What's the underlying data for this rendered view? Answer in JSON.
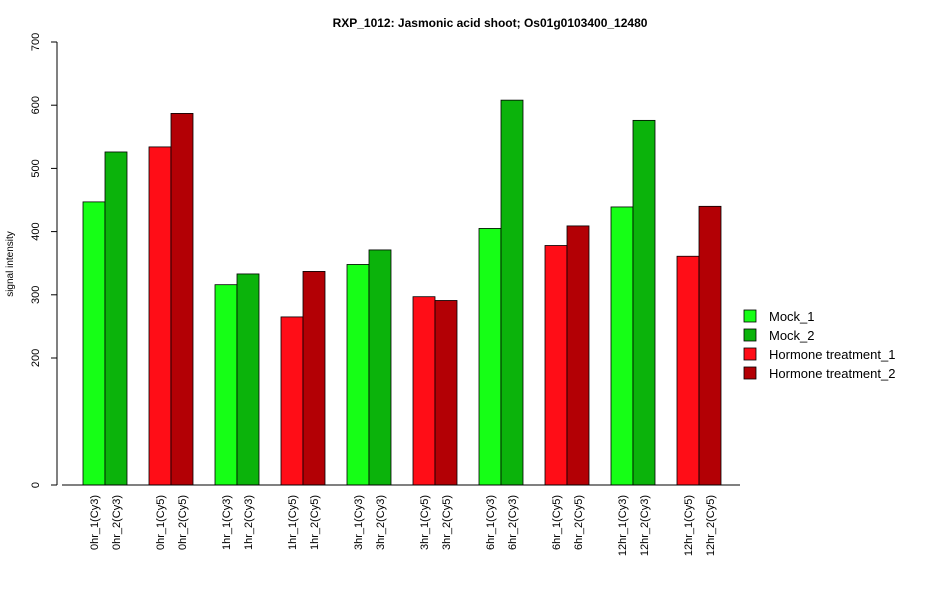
{
  "chart_data": {
    "type": "bar",
    "title": "RXP_1012: Jasmonic acid shoot; Os01g0103400_12480",
    "ylabel": "signal intensity",
    "xlabel": "",
    "yticks": [
      0,
      200,
      300,
      400,
      500,
      600,
      700
    ],
    "ylim": [
      0,
      700
    ],
    "grid": false,
    "legend_position": "right",
    "series": [
      {
        "name": "Mock_1",
        "color": "#16FF16"
      },
      {
        "name": "Mock_2",
        "color": "#0BB30B"
      },
      {
        "name": "Hormone treatment_1",
        "color": "#FF0D17"
      },
      {
        "name": "Hormone treatment_2",
        "color": "#B30005"
      }
    ],
    "bars": [
      {
        "label": "0hr_1(Cy3)",
        "value": 447,
        "series": 0
      },
      {
        "label": "0hr_2(Cy3)",
        "value": 526,
        "series": 1
      },
      {
        "label": "0hr_1(Cy5)",
        "value": 534,
        "series": 2
      },
      {
        "label": "0hr_2(Cy5)",
        "value": 587,
        "series": 3
      },
      {
        "label": "1hr_1(Cy3)",
        "value": 316,
        "series": 0
      },
      {
        "label": "1hr_2(Cy3)",
        "value": 333,
        "series": 1
      },
      {
        "label": "1hr_1(Cy5)",
        "value": 265,
        "series": 2
      },
      {
        "label": "1hr_2(Cy5)",
        "value": 337,
        "series": 3
      },
      {
        "label": "3hr_1(Cy3)",
        "value": 348,
        "series": 0
      },
      {
        "label": "3hr_2(Cy3)",
        "value": 371,
        "series": 1
      },
      {
        "label": "3hr_1(Cy5)",
        "value": 297,
        "series": 2
      },
      {
        "label": "3hr_2(Cy5)",
        "value": 291,
        "series": 3
      },
      {
        "label": "6hr_1(Cy3)",
        "value": 405,
        "series": 0
      },
      {
        "label": "6hr_2(Cy3)",
        "value": 608,
        "series": 1
      },
      {
        "label": "6hr_1(Cy5)",
        "value": 378,
        "series": 2
      },
      {
        "label": "6hr_2(Cy5)",
        "value": 409,
        "series": 3
      },
      {
        "label": "12hr_1(Cy3)",
        "value": 439,
        "series": 0
      },
      {
        "label": "12hr_2(Cy3)",
        "value": 576,
        "series": 1
      },
      {
        "label": "12hr_1(Cy5)",
        "value": 361,
        "series": 2
      },
      {
        "label": "12hr_2(Cy5)",
        "value": 440,
        "series": 3
      }
    ]
  }
}
